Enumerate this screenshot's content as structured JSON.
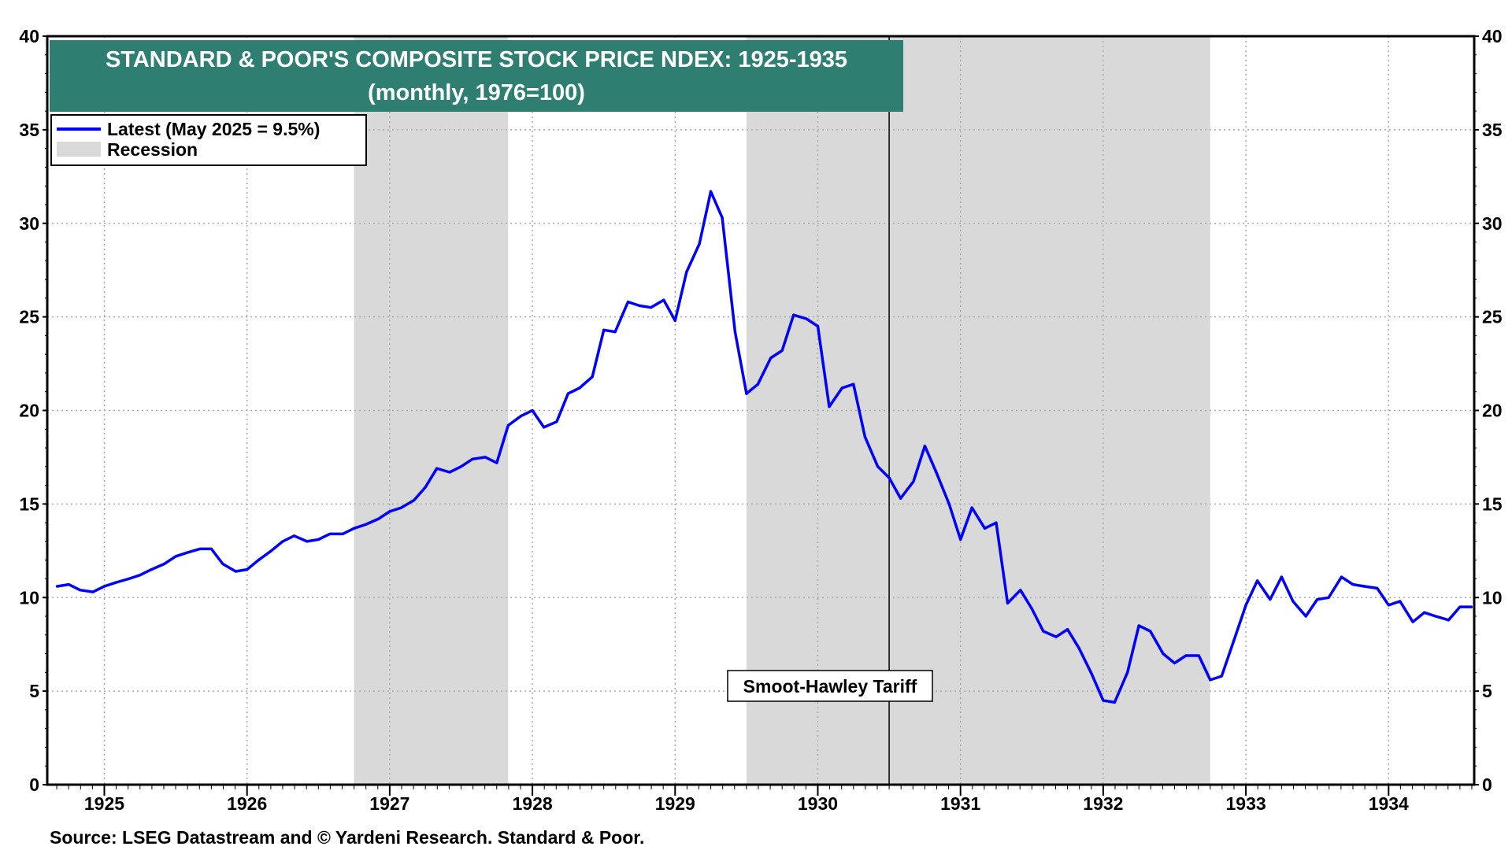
{
  "chart_data": {
    "type": "line",
    "title": "STANDARD & POOR'S COMPOSITE STOCK PRICE NDEX: 1925-1935",
    "subtitle": "(monthly, 1976=100)",
    "xlabel": "",
    "ylabel": "",
    "xlim": [
      1924.6,
      1934.6
    ],
    "ylim": [
      0,
      40
    ],
    "yticks": [
      0,
      5,
      10,
      15,
      20,
      25,
      30,
      35,
      40
    ],
    "xticks": [
      "1925",
      "1926",
      "1927",
      "1928",
      "1929",
      "1930",
      "1931",
      "1932",
      "1933",
      "1934"
    ],
    "grid": true,
    "legend_position": "top-left",
    "legend": {
      "latest_label": "Latest (May 2025 = 9.5%)",
      "recession_label": "Recession"
    },
    "colors": {
      "line": "#0000ff",
      "recession": "#d9d9d9",
      "title_bg": "#2e7f72",
      "grid": "#aaaaaa"
    },
    "recessions": [
      [
        1926.75,
        1927.83
      ],
      [
        1929.5,
        1932.75
      ]
    ],
    "events": [
      {
        "label": "Smoot-Hawley Tariff",
        "x": 1930.5
      }
    ],
    "series": [
      {
        "x": [
          1924.67,
          1924.75,
          1924.83,
          1924.92,
          1925.0,
          1925.08,
          1925.17,
          1925.25,
          1925.33,
          1925.42,
          1925.5,
          1925.58,
          1925.67,
          1925.75,
          1925.83,
          1925.92,
          1926.0,
          1926.08,
          1926.17,
          1926.25,
          1926.33,
          1926.42,
          1926.5,
          1926.58,
          1926.67,
          1926.75,
          1926.83,
          1926.92,
          1927.0,
          1927.08,
          1927.17,
          1927.25,
          1927.33,
          1927.42,
          1927.5,
          1927.58,
          1927.67,
          1927.75,
          1927.83,
          1927.92,
          1928.0,
          1928.08,
          1928.17,
          1928.25,
          1928.33,
          1928.42,
          1928.5,
          1928.58,
          1928.67,
          1928.75,
          1928.83,
          1928.92,
          1929.0,
          1929.08,
          1929.17,
          1929.25,
          1929.33,
          1929.42,
          1929.5,
          1929.58,
          1929.67,
          1929.75,
          1929.83,
          1929.92,
          1930.0,
          1930.08,
          1930.17,
          1930.25,
          1930.33,
          1930.42,
          1930.5,
          1930.58,
          1930.67,
          1930.75,
          1930.83,
          1930.92,
          1931.0,
          1931.08,
          1931.17,
          1931.25,
          1931.33,
          1931.42,
          1931.5,
          1931.58,
          1931.67,
          1931.75,
          1931.83,
          1931.92,
          1932.0,
          1932.08,
          1932.17,
          1932.25,
          1932.33,
          1932.42,
          1932.5,
          1932.58,
          1932.67,
          1932.75,
          1932.83,
          1932.92,
          1933.0,
          1933.08,
          1933.17,
          1933.25,
          1933.33,
          1933.42,
          1933.5,
          1933.58,
          1933.67,
          1933.75,
          1933.83,
          1933.92,
          1934.0,
          1934.08,
          1934.17,
          1934.25,
          1934.33,
          1934.42,
          1934.5,
          1934.58
        ],
        "values": [
          10.6,
          10.7,
          10.4,
          10.3,
          10.6,
          10.8,
          11.0,
          11.2,
          11.5,
          11.8,
          12.2,
          12.4,
          12.6,
          12.6,
          11.8,
          11.4,
          11.5,
          12.0,
          12.5,
          13.0,
          13.3,
          13.0,
          13.1,
          13.4,
          13.4,
          13.7,
          13.9,
          14.2,
          14.6,
          14.8,
          15.2,
          15.9,
          16.9,
          16.7,
          17.0,
          17.4,
          17.5,
          17.2,
          19.2,
          19.7,
          20.0,
          19.1,
          19.4,
          20.9,
          21.2,
          21.8,
          24.3,
          24.2,
          25.8,
          25.6,
          25.5,
          25.9,
          24.8,
          27.4,
          28.9,
          31.7,
          30.3,
          24.2,
          20.9,
          21.4,
          22.8,
          23.2,
          25.1,
          24.9,
          24.5,
          20.2,
          21.2,
          21.4,
          18.6,
          17.0,
          16.4,
          15.3,
          16.2,
          18.1,
          16.7,
          15.0,
          13.1,
          14.8,
          13.7,
          14.0,
          9.7,
          10.4,
          9.4,
          8.2,
          7.9,
          8.3,
          7.3,
          5.9,
          4.5,
          4.4,
          6.0,
          8.5,
          8.2,
          7.0,
          6.5,
          6.9,
          6.9,
          5.6,
          5.8,
          7.8,
          9.6,
          10.9,
          9.9,
          11.1,
          9.8,
          9.0,
          9.9,
          10.0,
          11.1,
          10.7,
          10.6,
          10.5,
          9.6,
          9.8,
          8.7,
          9.2,
          9.0,
          8.8,
          9.5,
          9.5
        ]
      }
    ]
  },
  "footer": {
    "source": "Source: LSEG Datastream and © Yardeni Research. Standard & Poor."
  }
}
